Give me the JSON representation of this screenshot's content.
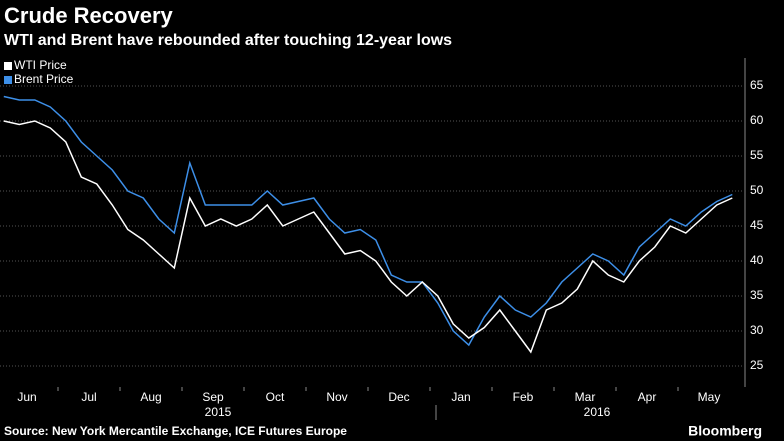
{
  "chart_data": {
    "type": "line",
    "title": "Crude Recovery",
    "subtitle": "WTI and Brent have rebounded after touching 12-year lows",
    "source": "Source: New York Mercantile Exchange, ICE Futures Europe",
    "logo": "Bloomberg",
    "x": [
      "2015-06",
      "2015-06",
      "2015-06",
      "2015-06",
      "2015-07",
      "2015-07",
      "2015-07",
      "2015-07",
      "2015-08",
      "2015-08",
      "2015-08",
      "2015-08",
      "2015-09",
      "2015-09",
      "2015-09",
      "2015-09",
      "2015-10",
      "2015-10",
      "2015-10",
      "2015-10",
      "2015-11",
      "2015-11",
      "2015-11",
      "2015-11",
      "2015-12",
      "2015-12",
      "2015-12",
      "2015-12",
      "2016-01",
      "2016-01",
      "2016-01",
      "2016-01",
      "2016-02",
      "2016-02",
      "2016-02",
      "2016-02",
      "2016-03",
      "2016-03",
      "2016-03",
      "2016-03",
      "2016-04",
      "2016-04",
      "2016-04",
      "2016-04",
      "2016-05",
      "2016-05",
      "2016-05",
      "2016-05"
    ],
    "series": [
      {
        "name": "WTI Price",
        "color": "#ffffff",
        "values": [
          60,
          59.5,
          60,
          59,
          57,
          52,
          51,
          48,
          44.5,
          43,
          41,
          39,
          49,
          45,
          46,
          45,
          46,
          48,
          45,
          46,
          47,
          44,
          41,
          41.5,
          40,
          37,
          35,
          37,
          35,
          31,
          29,
          30.5,
          33,
          30,
          27,
          33,
          34,
          36,
          40,
          38,
          37,
          40,
          42,
          45,
          44,
          46,
          48,
          49
        ]
      },
      {
        "name": "Brent Price",
        "color": "#3d8fe8",
        "values": [
          63.5,
          63,
          63,
          62,
          60,
          57,
          55,
          53,
          50,
          49,
          46,
          44,
          54,
          48,
          48,
          48,
          48,
          50,
          48,
          48.5,
          49,
          46,
          44,
          44.5,
          43,
          38,
          37,
          37,
          34,
          30,
          28,
          32,
          35,
          33,
          32,
          34,
          37,
          39,
          41,
          40,
          38,
          42,
          44,
          46,
          45,
          47,
          48.5,
          49.5
        ]
      }
    ],
    "xticks": [
      {
        "value": "2015-06",
        "label": "Jun"
      },
      {
        "value": "2015-07",
        "label": "Jul"
      },
      {
        "value": "2015-08",
        "label": "Aug"
      },
      {
        "value": "2015-09",
        "label": "Sep"
      },
      {
        "value": "2015-10",
        "label": "Oct"
      },
      {
        "value": "2015-11",
        "label": "Nov"
      },
      {
        "value": "2015-12",
        "label": "Dec"
      },
      {
        "value": "2016-01",
        "label": "Jan"
      },
      {
        "value": "2016-02",
        "label": "Feb"
      },
      {
        "value": "2016-03",
        "label": "Mar"
      },
      {
        "value": "2016-04",
        "label": "Apr"
      },
      {
        "value": "2016-05",
        "label": "May"
      }
    ],
    "year_labels": [
      "2015",
      "2016"
    ],
    "ylim": [
      22,
      69
    ],
    "yticks": [
      25,
      30,
      35,
      40,
      45,
      50,
      55,
      60,
      65
    ],
    "grid": true
  }
}
